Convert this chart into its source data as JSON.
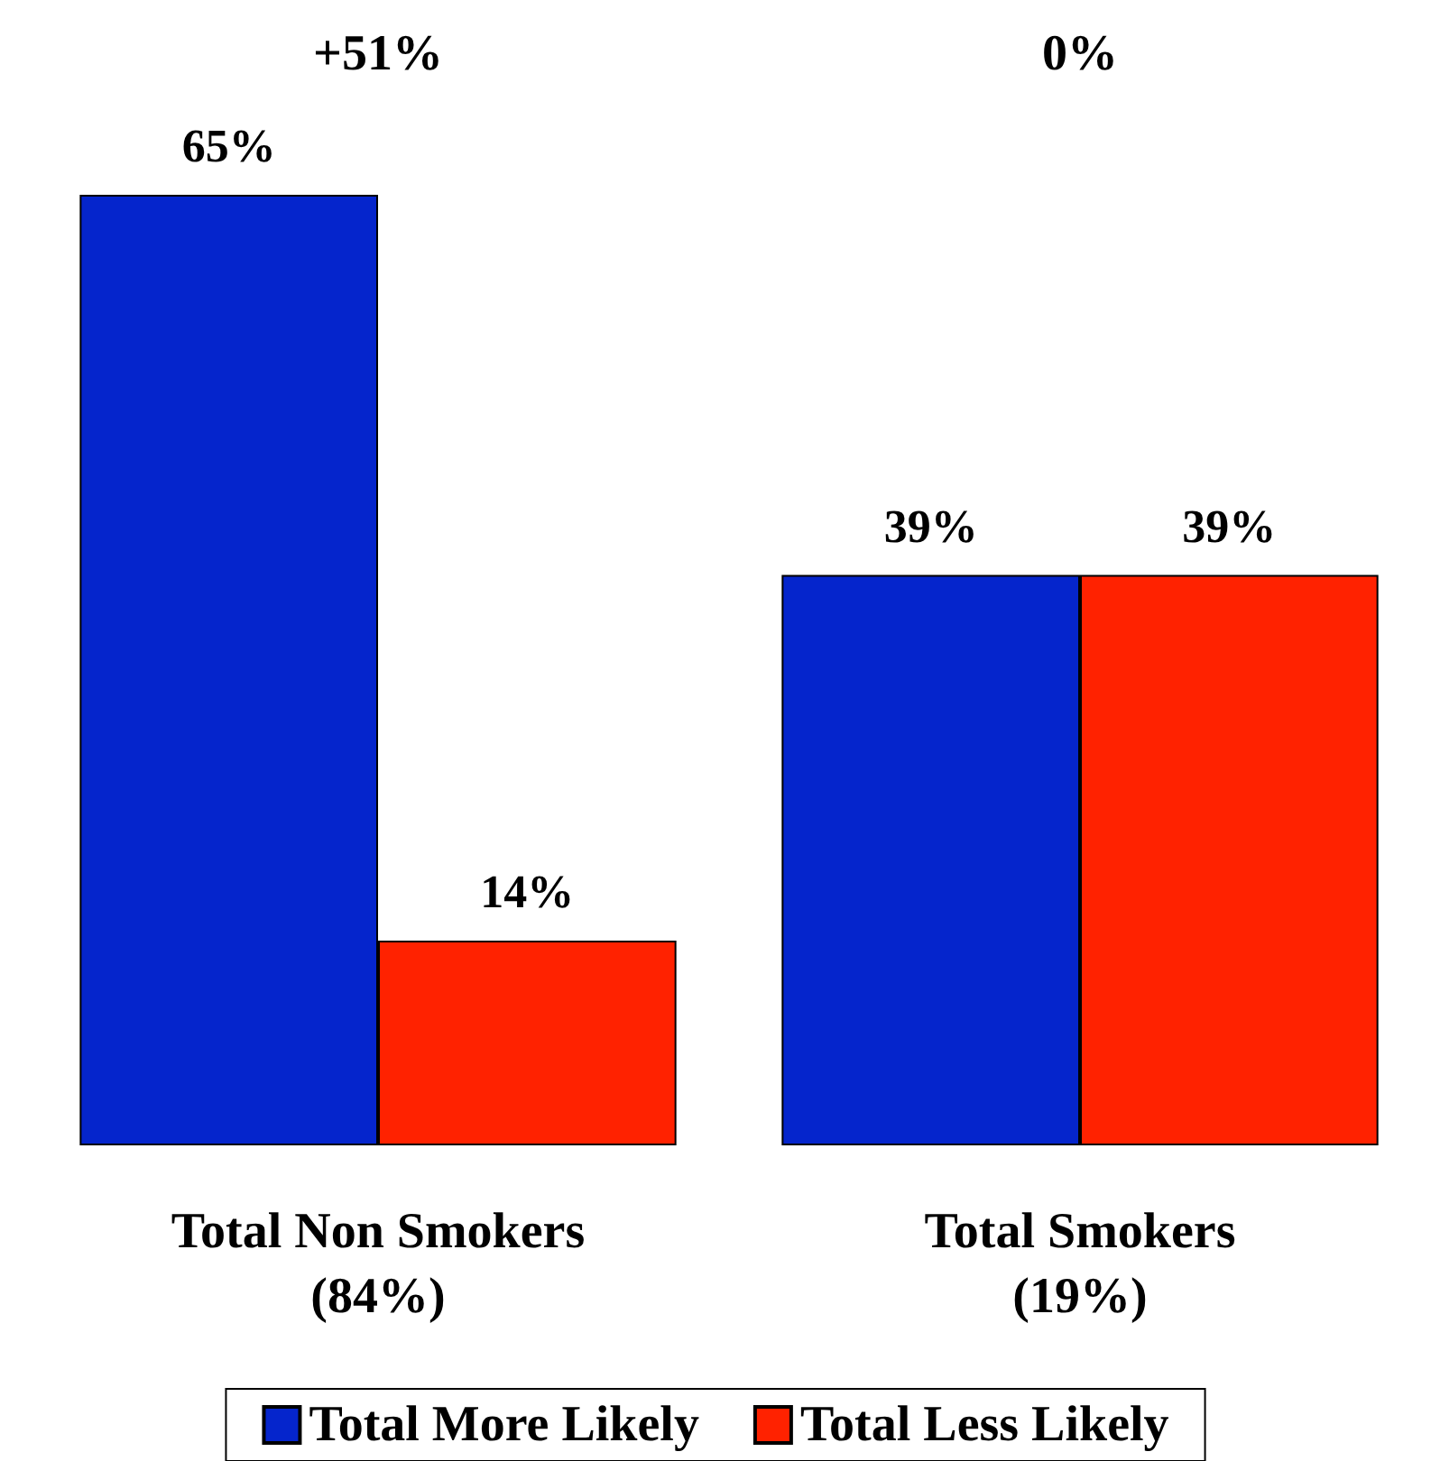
{
  "chart_data": {
    "type": "bar",
    "categories": [
      "Total Non Smokers\n(84%)",
      "Total Smokers\n(19%)"
    ],
    "series": [
      {
        "name": "Total More Likely",
        "color": "#0525cc",
        "values": [
          65,
          39
        ],
        "value_labels": [
          "65%",
          "39%"
        ]
      },
      {
        "name": "Total Less Likely",
        "color": "#ff2200",
        "values": [
          14,
          39
        ],
        "value_labels": [
          "14%",
          "39%"
        ]
      }
    ],
    "annotations": [
      "+51%",
      "0%"
    ],
    "legend": "bottom",
    "grid": false
  }
}
